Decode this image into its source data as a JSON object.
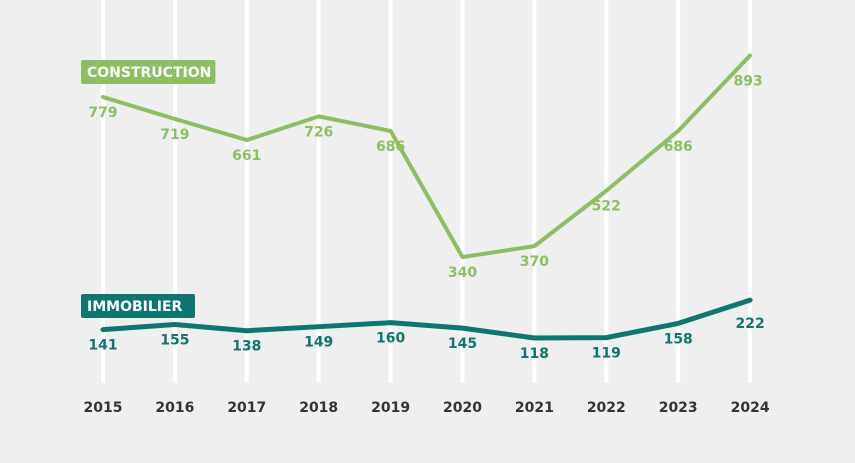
{
  "chart_data": {
    "type": "line",
    "title": "",
    "xlabel": "",
    "ylabel": "",
    "categories": [
      "2015",
      "2016",
      "2017",
      "2018",
      "2019",
      "2020",
      "2021",
      "2022",
      "2023",
      "2024"
    ],
    "ylim": [
      0,
      1050
    ],
    "grid": "vertical",
    "series": [
      {
        "name": "CONSTRUCTION",
        "color": "#8cbf63",
        "values": [
          779,
          719,
          661,
          726,
          686,
          340,
          370,
          522,
          686,
          893
        ]
      },
      {
        "name": "IMMOBILIER",
        "color": "#0f7571",
        "values": [
          141,
          155,
          138,
          149,
          160,
          145,
          118,
          119,
          158,
          222
        ]
      }
    ]
  }
}
